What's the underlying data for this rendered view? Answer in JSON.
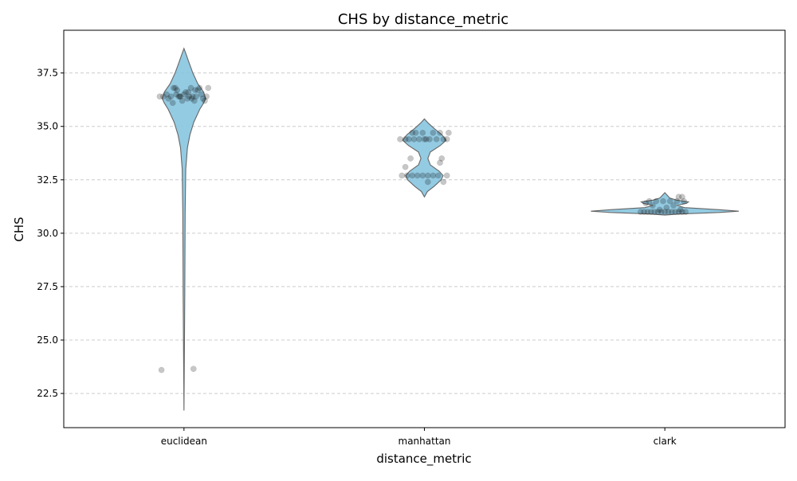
{
  "chart_data": {
    "type": "violin",
    "title": "CHS by distance_metric",
    "xlabel": "distance_metric",
    "ylabel": "CHS",
    "categories": [
      "euclidean",
      "manhattan",
      "clark"
    ],
    "ylim": [
      20.9,
      39.5
    ],
    "yticks": [
      22.5,
      25.0,
      27.5,
      30.0,
      32.5,
      35.0,
      37.5
    ],
    "ytick_labels": [
      "22.5",
      "25.0",
      "27.5",
      "30.0",
      "32.5",
      "35.0",
      "37.5"
    ],
    "grid": "y-axis dashed",
    "violin_color": "#87c5e0",
    "violins": [
      {
        "category": "euclidean",
        "profile": [
          [
            21.7,
            0.0
          ],
          [
            23.0,
            0.002
          ],
          [
            25.0,
            0.005
          ],
          [
            27.0,
            0.008
          ],
          [
            29.0,
            0.01
          ],
          [
            31.0,
            0.012
          ],
          [
            33.0,
            0.018
          ],
          [
            34.0,
            0.035
          ],
          [
            34.6,
            0.06
          ],
          [
            35.2,
            0.1
          ],
          [
            35.8,
            0.16
          ],
          [
            36.1,
            0.2
          ],
          [
            36.3,
            0.22
          ],
          [
            36.6,
            0.2
          ],
          [
            37.0,
            0.14
          ],
          [
            37.5,
            0.09
          ],
          [
            38.0,
            0.05
          ],
          [
            38.4,
            0.02
          ],
          [
            38.65,
            0.0
          ]
        ]
      },
      {
        "category": "manhattan",
        "profile": [
          [
            31.7,
            0.0
          ],
          [
            31.95,
            0.03
          ],
          [
            32.2,
            0.1
          ],
          [
            32.5,
            0.17
          ],
          [
            32.7,
            0.19
          ],
          [
            32.9,
            0.15
          ],
          [
            33.2,
            0.06
          ],
          [
            33.5,
            0.035
          ],
          [
            33.8,
            0.06
          ],
          [
            34.1,
            0.16
          ],
          [
            34.35,
            0.22
          ],
          [
            34.6,
            0.18
          ],
          [
            34.9,
            0.1
          ],
          [
            35.15,
            0.04
          ],
          [
            35.35,
            0.0
          ]
        ]
      },
      {
        "category": "clark",
        "profile": [
          [
            30.85,
            0.0
          ],
          [
            30.9,
            0.15
          ],
          [
            30.97,
            0.55
          ],
          [
            31.03,
            0.75
          ],
          [
            31.1,
            0.55
          ],
          [
            31.2,
            0.2
          ],
          [
            31.3,
            0.12
          ],
          [
            31.4,
            0.22
          ],
          [
            31.47,
            0.24
          ],
          [
            31.55,
            0.12
          ],
          [
            31.65,
            0.05
          ],
          [
            31.8,
            0.02
          ],
          [
            31.9,
            0.0
          ]
        ]
      }
    ],
    "points": [
      {
        "category": "euclidean",
        "y": [
          36.4,
          36.4,
          36.5,
          36.3,
          36.4,
          36.8,
          36.8,
          36.7,
          36.4,
          36.4,
          36.2,
          36.5,
          36.6,
          36.3,
          36.4,
          36.8,
          36.4,
          36.2,
          36.4,
          36.7,
          36.8,
          36.5,
          36.3,
          36.2,
          36.4,
          36.8,
          36.6,
          36.4,
          36.3,
          36.5,
          36.1,
          36.7,
          23.6,
          23.65
        ],
        "jitter": [
          -0.28,
          -0.24,
          -0.2,
          -0.18,
          -0.15,
          -0.12,
          -0.1,
          -0.08,
          -0.06,
          -0.04,
          -0.02,
          0.0,
          0.02,
          0.04,
          0.06,
          0.08,
          0.1,
          0.12,
          0.14,
          0.16,
          0.18,
          0.2,
          0.22,
          0.24,
          0.26,
          0.28,
          0.05,
          -0.05,
          0.09,
          -0.09,
          -0.13,
          0.13,
          -0.26,
          0.11
        ]
      },
      {
        "category": "manhattan",
        "y": [
          34.4,
          34.4,
          34.4,
          34.7,
          34.7,
          34.4,
          34.7,
          34.4,
          34.4,
          34.7,
          34.4,
          34.7,
          34.4,
          34.4,
          34.7,
          34.4,
          32.7,
          32.7,
          32.7,
          32.7,
          32.7,
          32.7,
          32.7,
          32.7,
          32.4,
          33.5,
          33.1,
          33.3,
          33.5,
          32.4,
          32.7,
          34.4
        ],
        "jitter": [
          -0.28,
          -0.22,
          -0.18,
          -0.14,
          -0.1,
          -0.06,
          -0.02,
          0.02,
          0.06,
          0.1,
          0.14,
          0.18,
          0.22,
          0.26,
          0.28,
          0.0,
          -0.26,
          -0.2,
          -0.14,
          -0.08,
          -0.02,
          0.04,
          0.1,
          0.16,
          0.04,
          -0.16,
          -0.22,
          0.18,
          0.2,
          0.22,
          0.26,
          -0.12
        ]
      },
      {
        "category": "clark",
        "y": [
          31.0,
          31.0,
          31.0,
          31.0,
          31.0,
          31.0,
          31.0,
          31.0,
          31.0,
          31.0,
          31.0,
          31.0,
          31.0,
          31.0,
          31.5,
          31.5,
          31.5,
          31.5,
          31.5,
          31.5,
          31.3,
          31.3,
          31.2,
          31.7,
          31.7,
          31.1,
          31.1,
          31.4
        ],
        "jitter": [
          -0.28,
          -0.24,
          -0.2,
          -0.16,
          -0.12,
          -0.08,
          -0.04,
          0.0,
          0.04,
          0.08,
          0.12,
          0.16,
          0.2,
          0.24,
          -0.18,
          -0.1,
          -0.02,
          0.06,
          0.14,
          0.22,
          -0.14,
          0.1,
          0.02,
          0.16,
          0.2,
          -0.06,
          0.18,
          -0.22
        ]
      }
    ]
  }
}
